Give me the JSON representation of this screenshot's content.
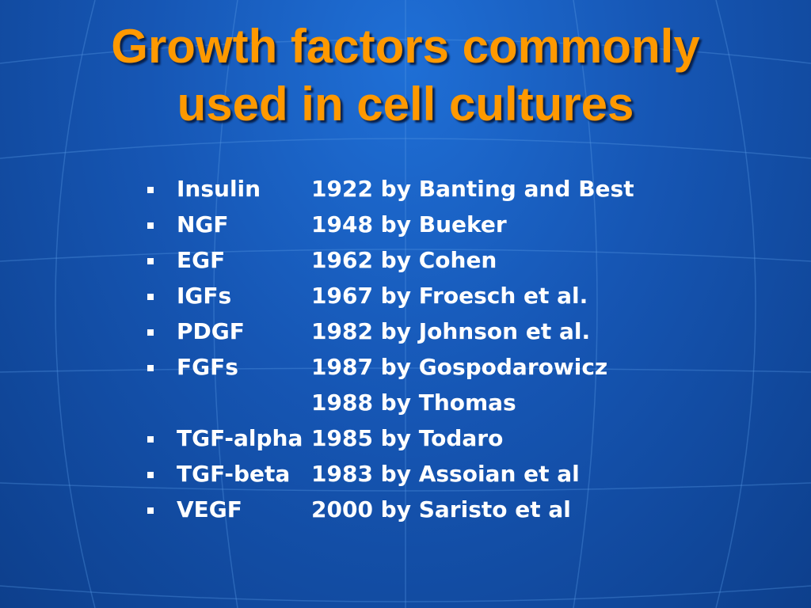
{
  "slide": {
    "title": {
      "lines": [
        "Growth factors commonly",
        "used in cell cultures"
      ]
    },
    "items": [
      {
        "name": "Insulin",
        "entries": [
          "1922 by Banting and Best"
        ]
      },
      {
        "name": "NGF",
        "entries": [
          "1948 by Bueker"
        ]
      },
      {
        "name": "EGF",
        "entries": [
          "1962 by Cohen"
        ]
      },
      {
        "name": "IGFs",
        "entries": [
          "1967 by Froesch et al."
        ]
      },
      {
        "name": "PDGF",
        "entries": [
          "1982 by Johnson et al."
        ]
      },
      {
        "name": "FGFs",
        "entries": [
          "1987 by Gospodarowicz",
          "1988 by Thomas"
        ]
      },
      {
        "name": "TGF-alpha",
        "entries": [
          "1985 by Todaro"
        ]
      },
      {
        "name": "TGF-beta",
        "entries": [
          "1983 by Assoian et al"
        ]
      },
      {
        "name": "VEGF",
        "entries": [
          "2000 by Saristo et al"
        ]
      }
    ]
  }
}
